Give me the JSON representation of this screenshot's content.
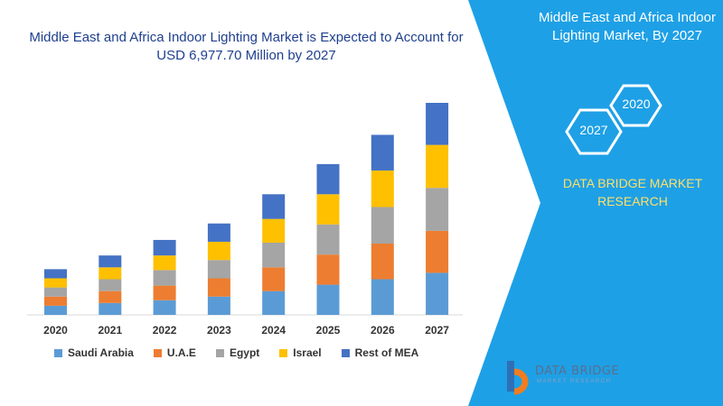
{
  "title": "Middle East and Africa Indoor Lighting Market is Expected to Account for USD 6,977.70 Million by 2027",
  "side_panel": {
    "title": "Middle East and Africa Indoor Lighting Market, By 2027",
    "badge_start": "2020",
    "badge_end": "2027",
    "brand": "DATA BRIDGE MARKET RESEARCH",
    "accent": "#1ea0e6",
    "badge_color": "#ffe066"
  },
  "logo": {
    "name": "DATA BRIDGE",
    "tagline": "MARKET RESEARCH"
  },
  "chart_data": {
    "type": "bar",
    "stacked": true,
    "categories": [
      "2020",
      "2021",
      "2022",
      "2023",
      "2024",
      "2025",
      "2026",
      "2027"
    ],
    "series": [
      {
        "name": "Saudi Arabia",
        "color": "#5b9bd5",
        "values": [
          10,
          13,
          16,
          20,
          26,
          33,
          39,
          46
        ]
      },
      {
        "name": "U.A.E",
        "color": "#ed7d31",
        "values": [
          10,
          13,
          16,
          20,
          26,
          33,
          39,
          46
        ]
      },
      {
        "name": "Egypt",
        "color": "#a5a5a5",
        "values": [
          10,
          13,
          17,
          20,
          27,
          33,
          40,
          47
        ]
      },
      {
        "name": "Israel",
        "color": "#ffc000",
        "values": [
          10,
          13,
          16,
          20,
          26,
          33,
          40,
          47
        ]
      },
      {
        "name": "Rest of MEA",
        "color": "#4472c4",
        "values": [
          10,
          13,
          17,
          20,
          27,
          33,
          39,
          46
        ]
      }
    ],
    "legend_position": "bottom",
    "grid": false
  }
}
